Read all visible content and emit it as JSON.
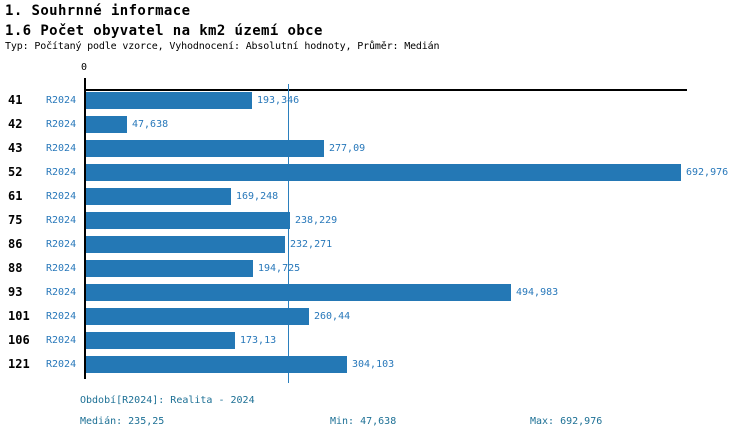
{
  "header": {
    "title": "1. Souhrnné informace"
  },
  "chart_data": {
    "type": "bar",
    "orientation": "horizontal",
    "title": "1.6 Počet obyvatel na km2 území obce",
    "subtitle": "Typ: Počítaný podle vzorce, Vyhodnocení: Absolutní hodnoty, Průměr: Medián",
    "categories": [
      "41",
      "42",
      "43",
      "52",
      "61",
      "75",
      "86",
      "88",
      "93",
      "101",
      "106",
      "121"
    ],
    "series": [
      {
        "name": "R2024",
        "values": [
          193.346,
          47.638,
          277.09,
          692.976,
          169.248,
          238.229,
          232.271,
          194.725,
          494.983,
          260.44,
          173.13,
          304.103
        ]
      }
    ],
    "value_labels": [
      "193,346",
      "47,638",
      "277,09",
      "692,976",
      "169,248",
      "238,229",
      "232,271",
      "194,725",
      "494,983",
      "260,44",
      "173,13",
      "304,103"
    ],
    "median": 235.25,
    "min": 47.638,
    "max": 692.976,
    "xlim": [
      0,
      700
    ],
    "x_axis_zero_label": "0",
    "grid": false,
    "legend": "none"
  },
  "footer": {
    "period": "Období[R2024]: Realita - 2024",
    "median": "Medián: 235,25",
    "min": "Min: 47,638",
    "max": "Max: 692,976"
  },
  "colors": {
    "bar": "#2478b5",
    "median_line": "#2b7fbd",
    "label_blue": "#2878ba",
    "footer_text": "#1d7095",
    "axis": "#000000"
  }
}
